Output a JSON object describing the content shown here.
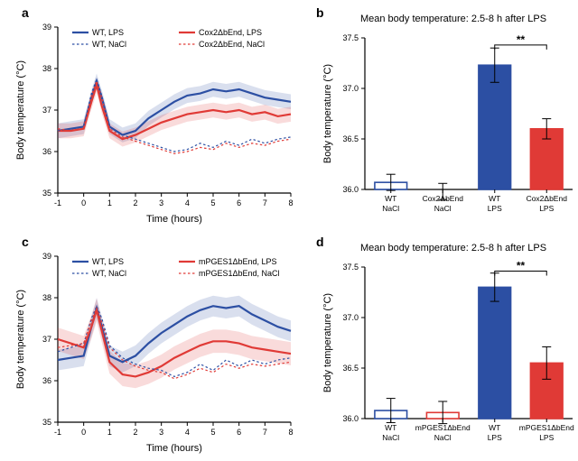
{
  "colors": {
    "wt": "#2c4fa3",
    "ko": "#e03a36",
    "axis": "#000000",
    "bg": "#ffffff"
  },
  "typography": {
    "panel_label_pt": 14,
    "axis_label_pt": 11,
    "tick_pt": 9,
    "legend_pt": 9
  },
  "panel_a": {
    "label": "a",
    "type": "line",
    "x_label": "Time (hours)",
    "y_label": "Body temperature (°C)",
    "xlim": [
      -1,
      8
    ],
    "xtick_step": 1,
    "ylim": [
      35,
      39
    ],
    "ytick_step": 1,
    "legend": [
      {
        "label": "WT, LPS",
        "color": "#2c4fa3",
        "dash": false
      },
      {
        "label": "Cox2ΔbEnd, LPS",
        "color": "#e03a36",
        "dash": false
      },
      {
        "label": "WT, NaCl",
        "color": "#2c4fa3",
        "dash": true
      },
      {
        "label": "Cox2ΔbEnd, NaCl",
        "color": "#e03a36",
        "dash": true
      }
    ],
    "series": {
      "wt_lps": {
        "x": [
          -1,
          -0.5,
          0,
          0.3,
          0.5,
          0.7,
          1,
          1.5,
          2,
          2.5,
          3,
          3.5,
          4,
          4.5,
          5,
          5.5,
          6,
          6.5,
          7,
          7.5,
          8
        ],
        "y": [
          36.5,
          36.55,
          36.6,
          37.3,
          37.7,
          37.3,
          36.6,
          36.4,
          36.5,
          36.8,
          37.0,
          37.2,
          37.35,
          37.4,
          37.5,
          37.45,
          37.5,
          37.4,
          37.3,
          37.25,
          37.2
        ],
        "color": "#2c4fa3",
        "width": 2.2,
        "dash": false,
        "band": 0.18
      },
      "ko_lps": {
        "x": [
          -1,
          -0.5,
          0,
          0.3,
          0.5,
          0.7,
          1,
          1.5,
          2,
          2.5,
          3,
          3.5,
          4,
          4.5,
          5,
          5.5,
          6,
          6.5,
          7,
          7.5,
          8
        ],
        "y": [
          36.5,
          36.5,
          36.55,
          37.2,
          37.6,
          37.1,
          36.5,
          36.3,
          36.4,
          36.55,
          36.7,
          36.8,
          36.9,
          36.95,
          37.0,
          36.95,
          37.0,
          36.9,
          36.95,
          36.85,
          36.9
        ],
        "color": "#e03a36",
        "width": 2.2,
        "dash": false,
        "band": 0.18
      },
      "wt_nacl": {
        "x": [
          -1,
          -0.5,
          0,
          0.3,
          0.5,
          0.7,
          1,
          1.5,
          2,
          2.5,
          3,
          3.5,
          4,
          4.5,
          5,
          5.5,
          6,
          6.5,
          7,
          7.5,
          8
        ],
        "y": [
          36.5,
          36.55,
          36.6,
          37.4,
          37.75,
          37.35,
          36.6,
          36.4,
          36.3,
          36.2,
          36.1,
          36.0,
          36.05,
          36.2,
          36.1,
          36.25,
          36.15,
          36.3,
          36.2,
          36.3,
          36.35
        ],
        "color": "#2c4fa3",
        "width": 1.2,
        "dash": true,
        "band": 0
      },
      "ko_nacl": {
        "x": [
          -1,
          -0.5,
          0,
          0.3,
          0.5,
          0.7,
          1,
          1.5,
          2,
          2.5,
          3,
          3.5,
          4,
          4.5,
          5,
          5.5,
          6,
          6.5,
          7,
          7.5,
          8
        ],
        "y": [
          36.55,
          36.5,
          36.55,
          37.35,
          37.7,
          37.3,
          36.55,
          36.35,
          36.25,
          36.15,
          36.05,
          35.95,
          36.0,
          36.1,
          36.05,
          36.2,
          36.1,
          36.2,
          36.15,
          36.25,
          36.3
        ],
        "color": "#e03a36",
        "width": 1.2,
        "dash": true,
        "band": 0
      }
    }
  },
  "panel_b": {
    "label": "b",
    "title": "Mean body temperature: 2.5-8 h after LPS",
    "type": "bar",
    "y_label": "Body temperature (°C)",
    "ylim": [
      36,
      37.5
    ],
    "ytick_step": 0.5,
    "bar_width": 0.62,
    "bars": [
      {
        "label_top": "WT",
        "label_bot": "NaCl",
        "value": 36.07,
        "err": 0.08,
        "fill": "#ffffff",
        "border": "#2c4fa3"
      },
      {
        "label_top": "Cox2ΔbEnd",
        "label_bot": "NaCl",
        "value": 35.98,
        "err": 0.08,
        "fill": "#ffffff",
        "border": "#e03a36"
      },
      {
        "label_top": "WT",
        "label_bot": "LPS",
        "value": 37.23,
        "err": 0.17,
        "fill": "#2c4fa3",
        "border": "#2c4fa3"
      },
      {
        "label_top": "Cox2ΔbEnd",
        "label_bot": "LPS",
        "value": 36.6,
        "err": 0.1,
        "fill": "#e03a36",
        "border": "#e03a36"
      }
    ],
    "sig": {
      "from": 2,
      "to": 3,
      "label": "**",
      "y": 37.43
    }
  },
  "panel_c": {
    "label": "c",
    "type": "line",
    "x_label": "Time (hours)",
    "y_label": "Body temperature (°C)",
    "xlim": [
      -1,
      8
    ],
    "xtick_step": 1,
    "ylim": [
      35,
      39
    ],
    "ytick_step": 1,
    "legend": [
      {
        "label": "WT, LPS",
        "color": "#2c4fa3",
        "dash": false
      },
      {
        "label": "mPGES1ΔbEnd, LPS",
        "color": "#e03a36",
        "dash": false
      },
      {
        "label": "WT, NaCl",
        "color": "#2c4fa3",
        "dash": true
      },
      {
        "label": "mPGES1ΔbEnd, NaCl",
        "color": "#e03a36",
        "dash": true
      }
    ],
    "series": {
      "wt_lps": {
        "x": [
          -1,
          -0.5,
          0,
          0.3,
          0.5,
          0.7,
          1,
          1.5,
          2,
          2.5,
          3,
          3.5,
          4,
          4.5,
          5,
          5.5,
          6,
          6.5,
          7,
          7.5,
          8
        ],
        "y": [
          36.5,
          36.55,
          36.6,
          37.3,
          37.75,
          37.3,
          36.6,
          36.45,
          36.6,
          36.9,
          37.15,
          37.35,
          37.55,
          37.7,
          37.8,
          37.75,
          37.8,
          37.6,
          37.45,
          37.3,
          37.2
        ],
        "color": "#2c4fa3",
        "width": 2.2,
        "dash": false,
        "band": 0.25
      },
      "ko_lps": {
        "x": [
          -1,
          -0.5,
          0,
          0.3,
          0.5,
          0.7,
          1,
          1.5,
          2,
          2.5,
          3,
          3.5,
          4,
          4.5,
          5,
          5.5,
          6,
          6.5,
          7,
          7.5,
          8
        ],
        "y": [
          37.0,
          36.9,
          36.8,
          37.3,
          37.7,
          37.2,
          36.45,
          36.15,
          36.1,
          36.2,
          36.35,
          36.55,
          36.7,
          36.85,
          36.95,
          36.95,
          36.9,
          36.8,
          36.75,
          36.7,
          36.65
        ],
        "color": "#e03a36",
        "width": 2.2,
        "dash": false,
        "band": 0.28
      },
      "wt_nacl": {
        "x": [
          -1,
          -0.5,
          0,
          0.3,
          0.5,
          0.7,
          1,
          1.5,
          2,
          2.5,
          3,
          3.5,
          4,
          4.5,
          5,
          5.5,
          6,
          6.5,
          7,
          7.5,
          8
        ],
        "y": [
          36.7,
          36.8,
          36.9,
          37.5,
          37.8,
          37.5,
          36.85,
          36.55,
          36.4,
          36.3,
          36.25,
          36.1,
          36.2,
          36.4,
          36.25,
          36.5,
          36.35,
          36.5,
          36.4,
          36.5,
          36.55
        ],
        "color": "#2c4fa3",
        "width": 1.2,
        "dash": true,
        "band": 0
      },
      "ko_nacl": {
        "x": [
          -1,
          -0.5,
          0,
          0.3,
          0.5,
          0.7,
          1,
          1.5,
          2,
          2.5,
          3,
          3.5,
          4,
          4.5,
          5,
          5.5,
          6,
          6.5,
          7,
          7.5,
          8
        ],
        "y": [
          36.8,
          36.85,
          36.9,
          37.45,
          37.75,
          37.4,
          36.8,
          36.5,
          36.35,
          36.25,
          36.2,
          36.05,
          36.15,
          36.3,
          36.2,
          36.4,
          36.3,
          36.4,
          36.35,
          36.4,
          36.45
        ],
        "color": "#e03a36",
        "width": 1.2,
        "dash": true,
        "band": 0
      }
    }
  },
  "panel_d": {
    "label": "d",
    "title": "Mean body temperature: 2.5-8 h after LPS",
    "type": "bar",
    "y_label": "Body temperature (°C)",
    "ylim": [
      36,
      37.5
    ],
    "ytick_step": 0.5,
    "bar_width": 0.62,
    "bars": [
      {
        "label_top": "WT",
        "label_bot": "NaCl",
        "value": 36.08,
        "err": 0.12,
        "fill": "#ffffff",
        "border": "#2c4fa3"
      },
      {
        "label_top": "mPGES1ΔbEnd",
        "label_bot": "NaCl",
        "value": 36.06,
        "err": 0.11,
        "fill": "#ffffff",
        "border": "#e03a36"
      },
      {
        "label_top": "WT",
        "label_bot": "LPS",
        "value": 37.3,
        "err": 0.14,
        "fill": "#2c4fa3",
        "border": "#2c4fa3"
      },
      {
        "label_top": "mPGES1ΔbEnd",
        "label_bot": "LPS",
        "value": 36.55,
        "err": 0.16,
        "fill": "#e03a36",
        "border": "#e03a36"
      }
    ],
    "sig": {
      "from": 2,
      "to": 3,
      "label": "**",
      "y": 37.46
    }
  }
}
